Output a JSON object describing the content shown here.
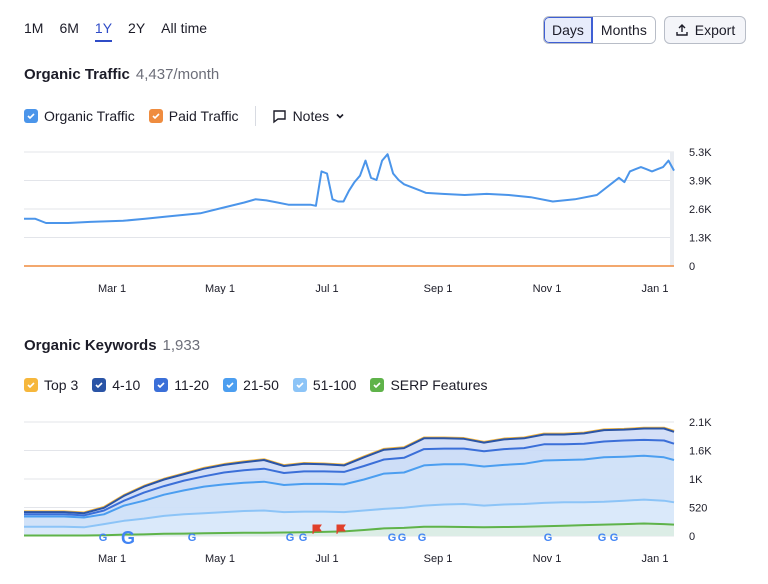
{
  "range_tabs": [
    {
      "label": "1M"
    },
    {
      "label": "6M"
    },
    {
      "label": "1Y",
      "active": true
    },
    {
      "label": "2Y"
    },
    {
      "label": "All time"
    }
  ],
  "granularity": {
    "days": "Days",
    "months": "Months",
    "active": "Days"
  },
  "export_label": "Export",
  "traffic": {
    "title": "Organic Traffic",
    "value": "4,437/month",
    "legend": [
      {
        "label": "Organic Traffic",
        "color": "#4b95ea",
        "checked": true
      },
      {
        "label": "Paid Traffic",
        "color": "#ef8c3f",
        "checked": true
      }
    ],
    "notes_label": "Notes"
  },
  "keywords": {
    "title": "Organic Keywords",
    "value": "1,933",
    "legend": [
      {
        "label": "Top 3",
        "color": "#f6b73c"
      },
      {
        "label": "4-10",
        "color": "#2a54a6"
      },
      {
        "label": "11-20",
        "color": "#3b6fd8"
      },
      {
        "label": "21-50",
        "color": "#4b9ef0"
      },
      {
        "label": "51-100",
        "color": "#8cc4f7"
      },
      {
        "label": "SERP Features",
        "color": "#5fb34a"
      }
    ]
  },
  "chart_data": [
    {
      "type": "line",
      "x_labels": [
        "Mar 1",
        "May 1",
        "Jul 1",
        "Sep 1",
        "Nov 1",
        "Jan 1"
      ],
      "y_ticks": [
        "5.3K",
        "3.9K",
        "2.6K",
        "1.3K",
        "0"
      ],
      "ylim": [
        0,
        5300
      ],
      "grid": true,
      "series": [
        {
          "name": "Organic Traffic",
          "color": "#4b95ea",
          "x": [
            0,
            10,
            20,
            40,
            60,
            90,
            110,
            130,
            160,
            180,
            200,
            210,
            220,
            230,
            240,
            250,
            260,
            265,
            270,
            275,
            280,
            285,
            290,
            295,
            300,
            305,
            310,
            315,
            320,
            325,
            330,
            335,
            340,
            345,
            350,
            355,
            360,
            365,
            380,
            400,
            420,
            440,
            460,
            480,
            500,
            520,
            540,
            545,
            550,
            555,
            560,
            565,
            570,
            575,
            580,
            585,
            590
          ],
          "values": [
            2200,
            2200,
            2000,
            2000,
            2050,
            2100,
            2200,
            2300,
            2450,
            2700,
            2950,
            3100,
            3050,
            2950,
            2850,
            2850,
            2850,
            2800,
            4400,
            4300,
            3100,
            3000,
            3000,
            3500,
            3900,
            4200,
            4900,
            4100,
            4000,
            4900,
            5200,
            4300,
            4000,
            3800,
            3700,
            3600,
            3500,
            3400,
            3350,
            3300,
            3350,
            3300,
            3200,
            3000,
            3100,
            3300,
            4100,
            3900,
            4400,
            4500,
            4600,
            4500,
            4400,
            4500,
            4600,
            4900,
            4437
          ]
        },
        {
          "name": "Paid Traffic",
          "color": "#ef8c3f",
          "x": [
            0,
            590
          ],
          "values": [
            0,
            0
          ]
        }
      ]
    },
    {
      "type": "area",
      "x_labels": [
        "Mar 1",
        "May 1",
        "Jul 1",
        "Sep 1",
        "Nov 1",
        "Jan 1"
      ],
      "y_ticks": [
        "2.1K",
        "1.6K",
        "1K",
        "520",
        "0"
      ],
      "ylim": [
        0,
        2100
      ],
      "grid": true,
      "x": [
        0,
        40,
        60,
        80,
        100,
        120,
        140,
        160,
        180,
        200,
        220,
        240,
        260,
        280,
        300,
        320,
        340,
        360,
        380,
        400,
        420,
        440,
        460,
        480,
        500,
        520,
        540,
        560,
        580,
        600,
        620,
        640,
        650
      ],
      "series": [
        {
          "name": "Top 3",
          "values": [
            450,
            450,
            430,
            530,
            750,
            920,
            1050,
            1150,
            1250,
            1320,
            1370,
            1410,
            1300,
            1340,
            1330,
            1310,
            1460,
            1600,
            1630,
            1810,
            1810,
            1800,
            1730,
            1790,
            1810,
            1880,
            1880,
            1900,
            1960,
            1970,
            1990,
            1990,
            1933
          ]
        },
        {
          "name": "4-10",
          "values": [
            440,
            440,
            420,
            520,
            740,
            910,
            1040,
            1140,
            1240,
            1310,
            1360,
            1400,
            1290,
            1330,
            1320,
            1300,
            1450,
            1590,
            1620,
            1800,
            1800,
            1790,
            1720,
            1780,
            1800,
            1870,
            1870,
            1890,
            1950,
            1960,
            1980,
            1980,
            1920
          ]
        },
        {
          "name": "11-20",
          "values": [
            400,
            400,
            380,
            470,
            650,
            800,
            920,
            1020,
            1100,
            1170,
            1210,
            1240,
            1160,
            1190,
            1190,
            1180,
            1290,
            1410,
            1440,
            1600,
            1610,
            1610,
            1560,
            1600,
            1620,
            1690,
            1690,
            1700,
            1740,
            1760,
            1770,
            1760,
            1700
          ]
        },
        {
          "name": "21-50",
          "values": [
            360,
            360,
            340,
            400,
            560,
            650,
            760,
            840,
            910,
            950,
            980,
            1000,
            940,
            960,
            960,
            950,
            1040,
            1150,
            1170,
            1300,
            1320,
            1320,
            1280,
            1310,
            1330,
            1390,
            1400,
            1410,
            1450,
            1460,
            1480,
            1450,
            1400
          ]
        },
        {
          "name": "51-100",
          "values": [
            170,
            170,
            160,
            220,
            280,
            320,
            370,
            400,
            420,
            440,
            460,
            470,
            440,
            450,
            450,
            440,
            470,
            500,
            520,
            560,
            580,
            590,
            560,
            580,
            590,
            610,
            620,
            620,
            630,
            650,
            670,
            650,
            620
          ]
        },
        {
          "name": "SERP Features",
          "values": [
            10,
            10,
            10,
            15,
            25,
            30,
            40,
            45,
            50,
            55,
            60,
            60,
            65,
            70,
            75,
            85,
            110,
            140,
            150,
            170,
            170,
            165,
            160,
            165,
            170,
            180,
            190,
            200,
            210,
            220,
            230,
            220,
            210
          ]
        }
      ],
      "annotations": [
        "G",
        "G",
        "G",
        "G",
        "G",
        "G",
        "G",
        "G",
        "G",
        "G",
        "G"
      ]
    }
  ]
}
